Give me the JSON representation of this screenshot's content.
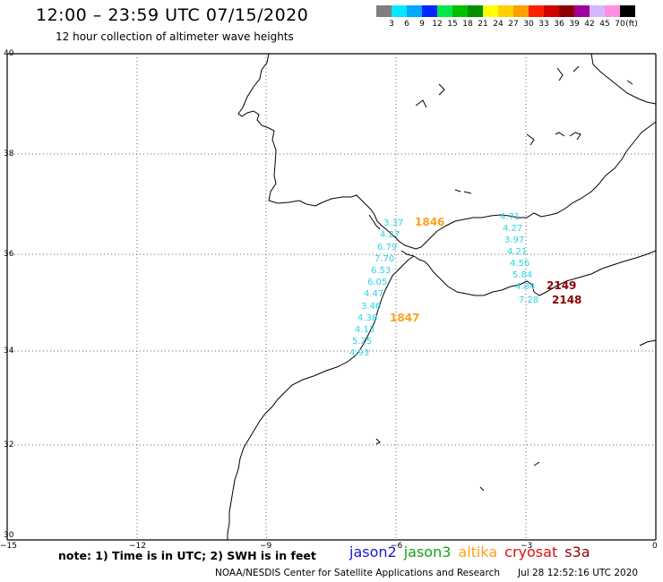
{
  "header": {
    "title": "12:00 – 23:59 UTC 07/15/2020",
    "subtitle": "12 hour collection of altimeter wave heights"
  },
  "legend": {
    "colors": [
      "#7f7f7f",
      "#00e8ff",
      "#00a8ff",
      "#0028ff",
      "#00e84c",
      "#00c000",
      "#009000",
      "#ffff00",
      "#ffd000",
      "#ffa000",
      "#ff2000",
      "#d00000",
      "#900000",
      "#a000a0",
      "#d0b8ff",
      "#ff90e0",
      "#000000"
    ],
    "labels": [
      "3",
      "6",
      "9",
      "12",
      "15",
      "18",
      "21",
      "24",
      "27",
      "30",
      "33",
      "36",
      "39",
      "42",
      "45",
      "70",
      "(ft)"
    ]
  },
  "axes": {
    "x_ticks": [
      "−15",
      "−12",
      "−9",
      "−6",
      "−3",
      "0"
    ],
    "y_ticks": [
      "40",
      "38",
      "36",
      "34",
      "32",
      "30"
    ]
  },
  "swh_labels": [
    "3.37",
    "4.27",
    "6.79",
    "7.70",
    "6.53",
    "6.05",
    "4.47",
    "3.46",
    "4.38",
    "4.13",
    "5.25",
    "4.93",
    "4.71",
    "4.27",
    "3.97",
    "4.21",
    "4.56",
    "5.84",
    "4.84",
    "7.28"
  ],
  "pass_labels": [
    {
      "text": "1846",
      "color": "#ff9f1c"
    },
    {
      "text": "1847",
      "color": "#ff9f1c"
    },
    {
      "text": "2149",
      "color": "#8b0000"
    },
    {
      "text": "2148",
      "color": "#8b0000"
    }
  ],
  "note": "note:  1) Time is in UTC;  2) SWH is in feet",
  "missions": [
    {
      "name": "jason2",
      "color": "#1616d6"
    },
    {
      "name": "jason3",
      "color": "#16a016"
    },
    {
      "name": "altika",
      "color": "#ff9f1c"
    },
    {
      "name": "cryosat",
      "color": "#dd1111"
    },
    {
      "name": "s3a",
      "color": "#8b0000"
    }
  ],
  "footer": {
    "credit": "NOAA/NESDIS Center for Satellite Applications and Research",
    "timestamp": "Jul 28 12:52:16 UTC 2020"
  }
}
